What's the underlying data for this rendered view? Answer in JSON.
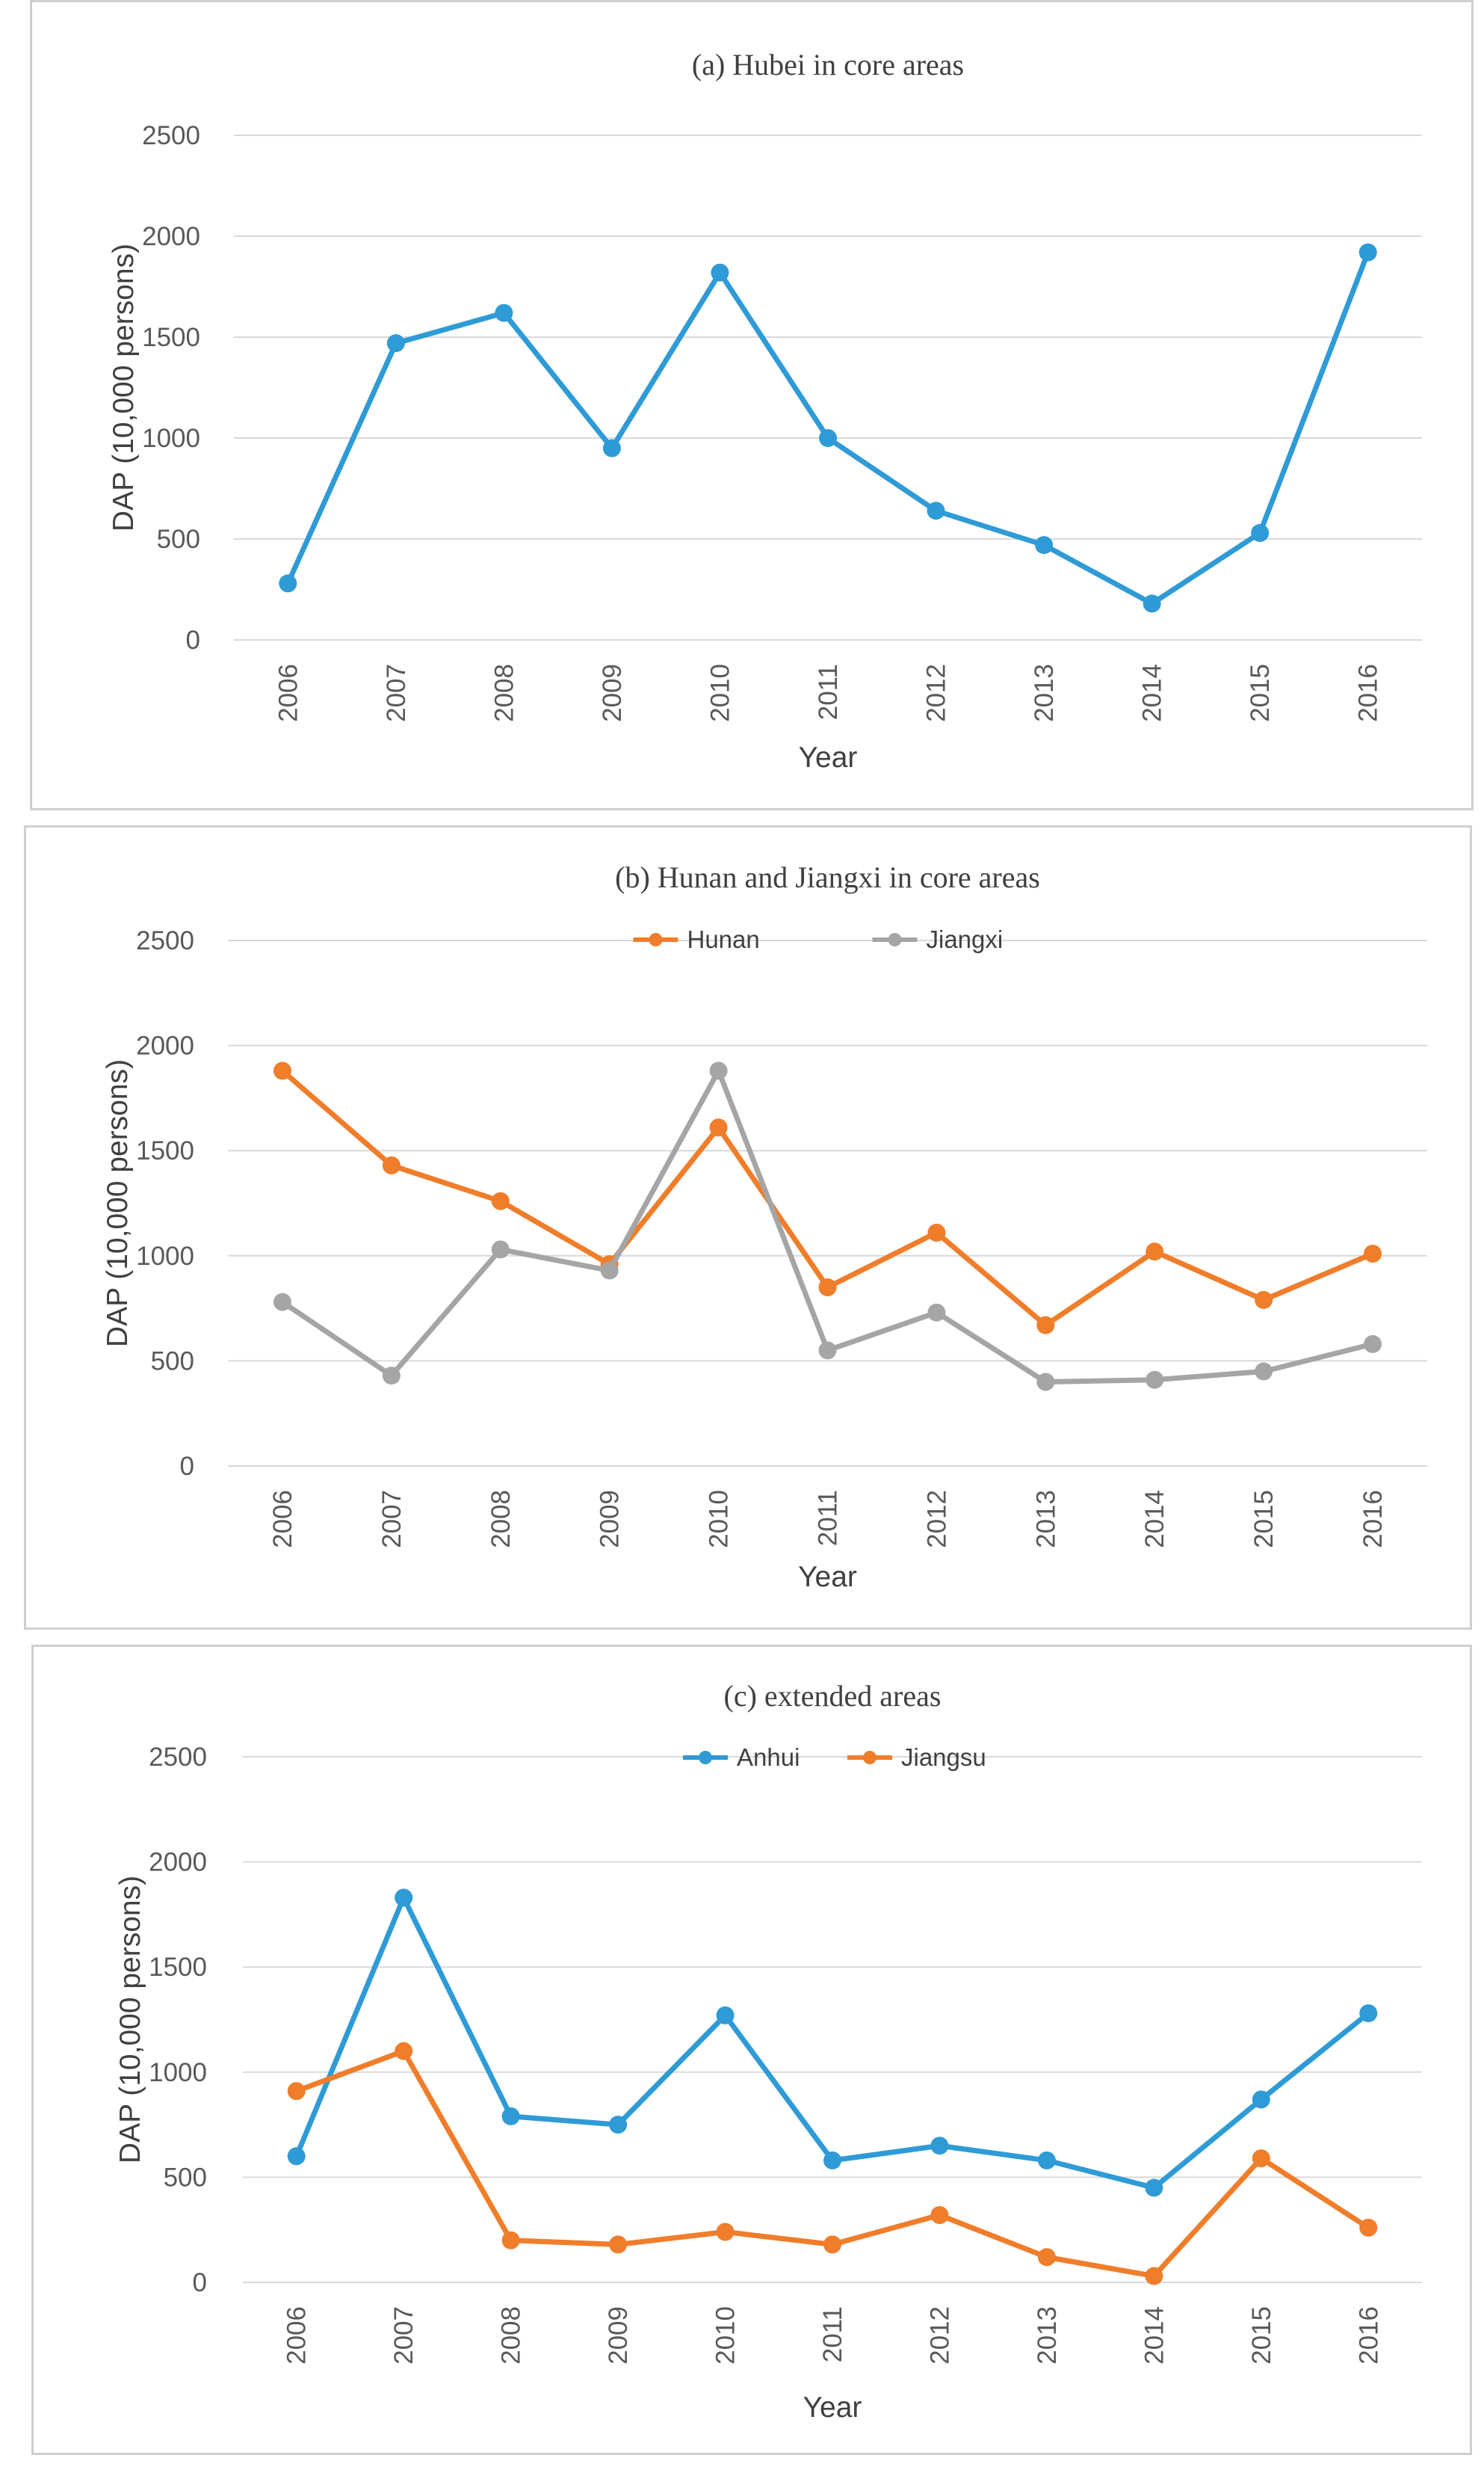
{
  "chart_data": [
    {
      "id": "a",
      "type": "line",
      "title": "(a) Hubei in core areas",
      "xlabel": "Year",
      "ylabel": "DAP (10,000 persons)",
      "ylim": [
        0,
        2500
      ],
      "yticks": [
        "0",
        "500",
        "1000",
        "1500",
        "2000",
        "2500"
      ],
      "categories": [
        "2006",
        "2007",
        "2008",
        "2009",
        "2010",
        "2011",
        "2012",
        "2013",
        "2014",
        "2015",
        "2016"
      ],
      "grid": true,
      "legend": null,
      "series": [
        {
          "name": "Hubei",
          "color": "#2e9bd6",
          "values": [
            280,
            1470,
            1620,
            950,
            1820,
            1000,
            640,
            470,
            180,
            530,
            1920
          ]
        }
      ]
    },
    {
      "id": "b",
      "type": "line",
      "title": "(b) Hunan and Jiangxi in core areas",
      "xlabel": "Year",
      "ylabel": "DAP (10,000 persons)",
      "ylim": [
        0,
        2500
      ],
      "yticks": [
        "0",
        "500",
        "1000",
        "1500",
        "2000",
        "2500"
      ],
      "categories": [
        "2006",
        "2007",
        "2008",
        "2009",
        "2010",
        "2011",
        "2012",
        "2013",
        "2014",
        "2015",
        "2016"
      ],
      "grid": true,
      "legend": "top-center",
      "series": [
        {
          "name": "Hunan",
          "color": "#f07d2a",
          "values": [
            1880,
            1430,
            1260,
            960,
            1610,
            850,
            1110,
            670,
            1020,
            790,
            1010
          ]
        },
        {
          "name": "Jiangxi",
          "color": "#a5a5a5",
          "values": [
            780,
            430,
            1030,
            930,
            1880,
            550,
            730,
            400,
            410,
            450,
            580
          ]
        }
      ]
    },
    {
      "id": "c",
      "type": "line",
      "title": "(c) extended areas",
      "xlabel": "Year",
      "ylabel": "DAP (10,000 persons)",
      "ylim": [
        0,
        2500
      ],
      "yticks": [
        "0",
        "500",
        "1000",
        "1500",
        "2000",
        "2500"
      ],
      "categories": [
        "2006",
        "2007",
        "2008",
        "2009",
        "2010",
        "2011",
        "2012",
        "2013",
        "2014",
        "2015",
        "2016"
      ],
      "grid": true,
      "legend": "top-center",
      "series": [
        {
          "name": "Anhui",
          "color": "#2e9bd6",
          "values": [
            600,
            1830,
            790,
            750,
            1270,
            580,
            650,
            580,
            450,
            870,
            1280
          ]
        },
        {
          "name": "Jiangsu",
          "color": "#f07d2a",
          "values": [
            910,
            1100,
            200,
            180,
            240,
            180,
            320,
            120,
            30,
            590,
            260
          ]
        }
      ]
    }
  ]
}
